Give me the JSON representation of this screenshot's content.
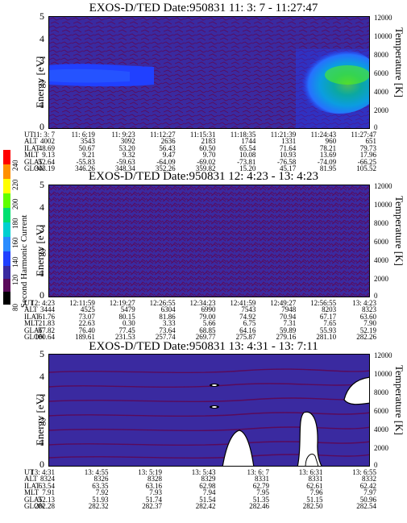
{
  "colorbar": {
    "label": "Second Harmonic Current",
    "ticks": [
      "80",
      "120",
      "140",
      "160",
      "180",
      "200",
      "220",
      "240"
    ],
    "colors": [
      "#000000",
      "#5a0a5a",
      "#3a2aa0",
      "#2040ff",
      "#2a8cff",
      "#00d0d0",
      "#00e070",
      "#60ff00",
      "#ffff00",
      "#ff9000",
      "#ff0000"
    ]
  },
  "panels": [
    {
      "title": "EXOS-D/TED   Date:950831  11: 3: 7 - 11:27:47",
      "ylabel": "Energy [eV]",
      "yticks": [
        "0",
        "1",
        "2",
        "3",
        "4",
        "5"
      ],
      "rlabel": "Temperature [K]",
      "rticks": [
        "0",
        "2000",
        "4000",
        "6000",
        "8000",
        "10000",
        "12000"
      ],
      "background": "#3a2aa0",
      "rows": {
        "labels": [
          "UT",
          "ALT",
          "ILAT",
          "MLT",
          "GLAT",
          "GLON"
        ],
        "columns": [
          [
            "11: 3: 7",
            "4002",
            "48.69",
            "9.13",
            "-52.64",
            "343.19"
          ],
          [
            "11: 6:19",
            "3543",
            "50.67",
            "9.21",
            "-55.83",
            "346.26"
          ],
          [
            "11: 9:23",
            "3092",
            "53.20",
            "9.32",
            "-59.63",
            "348.34"
          ],
          [
            "11:12:27",
            "2636",
            "56.43",
            "9.47",
            "-64.09",
            "352.26"
          ],
          [
            "11:15:31",
            "2183",
            "60.50",
            "9.70",
            "-69.02",
            "359.82"
          ],
          [
            "11:18:35",
            "1744",
            "65.54",
            "10.08",
            "-73.81",
            "15.20"
          ],
          [
            "11:21:39",
            "1331",
            "71.64",
            "10.93",
            "-76.58",
            "45.17"
          ],
          [
            "11:24:43",
            "960",
            "78.21",
            "13.69",
            "-74.09",
            "81.95"
          ],
          [
            "11:27:47",
            "651",
            "79.73",
            "17.96",
            "-66.25",
            "105.52"
          ]
        ]
      }
    },
    {
      "title": "EXOS-D/TED   Date:950831  12: 4:23 - 13: 4:23",
      "ylabel": "Energy [eV]",
      "yticks": [
        "0",
        "1",
        "2",
        "3",
        "4",
        "5"
      ],
      "rlabel": "Temperature [K]",
      "rticks": [
        "0",
        "2000",
        "4000",
        "6000",
        "8000",
        "10000",
        "12000"
      ],
      "background": "#3a2aa0",
      "rows": {
        "labels": [
          "UT",
          "ALT",
          "ILAT",
          "MLT",
          "GLAT",
          "GLON"
        ],
        "columns": [
          [
            "12: 4:23",
            "3444",
            "61.76",
            "21.83",
            "67.82",
            "160.64"
          ],
          [
            "12:11:59",
            "4525",
            "73.07",
            "22.63",
            "76.40",
            "189.61"
          ],
          [
            "12:19:27",
            "5479",
            "80.15",
            "0.30",
            "77.45",
            "231.53"
          ],
          [
            "12:26:55",
            "6304",
            "81.86",
            "3.33",
            "73.64",
            "257.74"
          ],
          [
            "12:34:23",
            "6990",
            "79.00",
            "5.66",
            "68.85",
            "269.77"
          ],
          [
            "12:41:59",
            "7543",
            "74.92",
            "6.75",
            "64.16",
            "275.87"
          ],
          [
            "12:49:27",
            "7948",
            "70.94",
            "7.31",
            "59.89",
            "279.16"
          ],
          [
            "12:56:55",
            "8203",
            "67.17",
            "7.65",
            "55.93",
            "281.10"
          ],
          [
            "13: 4:23",
            "8323",
            "63.60",
            "7.90",
            "52.19",
            "282.26"
          ]
        ]
      }
    },
    {
      "title": "EXOS-D/TED   Date:950831  13: 4:31 - 13: 7:11",
      "ylabel": "Energy [eV]",
      "yticks": [
        "0",
        "1",
        "2",
        "3",
        "4",
        "5"
      ],
      "rlabel": "Temperature [K]",
      "rticks": [
        "0",
        "2000",
        "4000",
        "6000",
        "8000",
        "10000",
        "12000"
      ],
      "background": "#3a2aa0",
      "rows": {
        "labels": [
          "UT",
          "ALT",
          "ILAT",
          "MLT",
          "GLAT",
          "GLON"
        ],
        "columns": [
          [
            "13: 4:31",
            "8324",
            "63.54",
            "7.91",
            "52.13",
            "282.28"
          ],
          [
            "13: 4:55",
            "8326",
            "63.35",
            "7.92",
            "51.93",
            "282.32"
          ],
          [
            "13: 5:19",
            "8328",
            "63.16",
            "7.93",
            "51.74",
            "282.37"
          ],
          [
            "13: 5:43",
            "8329",
            "62.98",
            "7.94",
            "51.54",
            "282.42"
          ],
          [
            "13: 6: 7",
            "8331",
            "62.79",
            "7.95",
            "51.35",
            "282.46"
          ],
          [
            "13: 6:31",
            "8331",
            "62.61",
            "7.96",
            "51.15",
            "282.50"
          ],
          [
            "13: 6:55",
            "8332",
            "62.42",
            "7.97",
            "50.96",
            "282.54"
          ]
        ]
      }
    }
  ],
  "chart_data": [
    {
      "type": "heatmap",
      "title": "EXOS-D/TED   Date:950831  11: 3: 7 - 11:27:47",
      "ylabel": "Energy [eV]",
      "ylim": [
        0,
        5
      ],
      "y2label": "Temperature [K]",
      "y2lim": [
        0,
        12000
      ],
      "x": [
        "11: 3: 7",
        "11: 6:19",
        "11: 9:23",
        "11:12:27",
        "11:15:31",
        "11:18:35",
        "11:21:39",
        "11:24:43",
        "11:27:47"
      ],
      "colorbar": {
        "label": "Second Harmonic Current",
        "range": [
          80,
          240
        ]
      },
      "features": [
        {
          "x_range": [
            "11: 3: 7",
            "11: 9:23"
          ],
          "energy_range": [
            2.0,
            2.7
          ],
          "level": 150
        },
        {
          "x_range": [
            "11:21:39",
            "11:27:47"
          ],
          "energy_range": [
            0.5,
            3.0
          ],
          "level": 200
        }
      ]
    },
    {
      "type": "heatmap",
      "title": "EXOS-D/TED   Date:950831  12: 4:23 - 13: 4:23",
      "ylabel": "Energy [eV]",
      "ylim": [
        0,
        5
      ],
      "y2label": "Temperature [K]",
      "y2lim": [
        0,
        12000
      ],
      "x": [
        "12: 4:23",
        "12:11:59",
        "12:19:27",
        "12:26:55",
        "12:34:23",
        "12:41:59",
        "12:49:27",
        "12:56:55",
        "13: 4:23"
      ],
      "colorbar": {
        "label": "Second Harmonic Current",
        "range": [
          80,
          240
        ]
      },
      "features": []
    },
    {
      "type": "heatmap",
      "title": "EXOS-D/TED   Date:950831  13: 4:31 - 13: 7:11",
      "ylabel": "Energy [eV]",
      "ylim": [
        0,
        5
      ],
      "y2label": "Temperature [K]",
      "y2lim": [
        0,
        12000
      ],
      "x": [
        "13: 4:31",
        "13: 4:55",
        "13: 5:19",
        "13: 5:43",
        "13: 6: 7",
        "13: 6:31",
        "13: 6:55"
      ],
      "colorbar": {
        "label": "Second Harmonic Current",
        "range": [
          80,
          240
        ]
      },
      "features": []
    }
  ]
}
